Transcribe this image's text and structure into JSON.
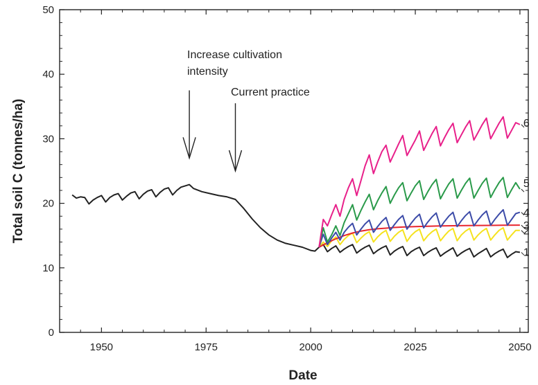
{
  "chart_data": {
    "type": "line",
    "xlabel": "Date",
    "ylabel": "Total soil C (tonnes/ha)",
    "xlim": [
      1940,
      2052
    ],
    "ylim": [
      0,
      50
    ],
    "xticks": [
      1950,
      1975,
      2000,
      2025,
      2050
    ],
    "yticks": [
      0,
      10,
      20,
      30,
      40,
      50
    ],
    "grid": false,
    "annotations": [
      {
        "lines": [
          "Increase cultivation",
          "intensity"
        ],
        "arrow_x": 1971,
        "arrow_from_y": 37.5,
        "arrow_to_y": 27
      },
      {
        "lines": [
          "Current practice"
        ],
        "arrow_x": 1982,
        "arrow_from_y": 35.5,
        "arrow_to_y": 25
      }
    ],
    "series": [
      {
        "label": "",
        "color": "#222222",
        "x": [
          1943,
          1944,
          1945,
          1946,
          1947,
          1948,
          1949,
          1950,
          1951,
          1952,
          1953,
          1954,
          1955,
          1956,
          1957,
          1958,
          1959,
          1960,
          1961,
          1962,
          1963,
          1964,
          1965,
          1966,
          1967,
          1968,
          1969,
          1970,
          1971,
          1972,
          1974,
          1976,
          1978,
          1980,
          1982,
          1984,
          1986,
          1988,
          1990,
          1992,
          1994,
          1996,
          1998,
          2000,
          2001,
          2002
        ],
        "y": [
          21.3,
          20.8,
          21.0,
          20.9,
          19.9,
          20.5,
          20.9,
          21.2,
          20.2,
          20.9,
          21.3,
          21.5,
          20.5,
          21.1,
          21.6,
          21.8,
          20.7,
          21.4,
          21.9,
          22.1,
          21.0,
          21.7,
          22.2,
          22.4,
          21.3,
          22.0,
          22.5,
          22.7,
          22.9,
          22.3,
          21.8,
          21.5,
          21.2,
          21.0,
          20.6,
          19.2,
          17.6,
          16.2,
          15.1,
          14.3,
          13.8,
          13.5,
          13.2,
          12.7,
          12.6,
          13.2
        ]
      },
      {
        "label": "1",
        "color": "#222222",
        "x": [
          2002,
          2003,
          2004,
          2005,
          2006,
          2007,
          2008,
          2009,
          2010,
          2011,
          2012,
          2013,
          2014,
          2015,
          2016,
          2017,
          2018,
          2019,
          2020,
          2021,
          2022,
          2023,
          2024,
          2025,
          2026,
          2027,
          2028,
          2029,
          2030,
          2031,
          2032,
          2033,
          2034,
          2035,
          2036,
          2037,
          2038,
          2039,
          2040,
          2041,
          2042,
          2043,
          2044,
          2045,
          2046,
          2047,
          2048,
          2049,
          2050
        ],
        "y": [
          13.2,
          13.6,
          12.5,
          13.0,
          13.4,
          12.4,
          12.9,
          13.3,
          13.6,
          12.3,
          12.8,
          13.2,
          13.5,
          12.2,
          12.7,
          13.1,
          13.4,
          12.0,
          12.6,
          13.0,
          13.3,
          11.9,
          12.5,
          12.9,
          13.2,
          11.9,
          12.4,
          12.8,
          13.1,
          11.8,
          12.3,
          12.7,
          13.1,
          11.8,
          12.3,
          12.7,
          13.0,
          11.7,
          12.2,
          12.6,
          13.0,
          11.7,
          12.2,
          12.6,
          12.9,
          11.6,
          12.1,
          12.5,
          12.4
        ]
      },
      {
        "label": "2",
        "color": "#f5e21e",
        "x": [
          2002,
          2003,
          2004,
          2005,
          2006,
          2007,
          2008,
          2009,
          2010,
          2011,
          2012,
          2013,
          2014,
          2015,
          2016,
          2017,
          2018,
          2019,
          2020,
          2021,
          2022,
          2023,
          2024,
          2025,
          2026,
          2027,
          2028,
          2029,
          2030,
          2031,
          2032,
          2033,
          2034,
          2035,
          2036,
          2037,
          2038,
          2039,
          2040,
          2041,
          2042,
          2043,
          2044,
          2045,
          2046,
          2047,
          2048,
          2049,
          2050
        ],
        "y": [
          13.2,
          14.0,
          13.3,
          14.2,
          14.8,
          13.6,
          14.4,
          15.0,
          15.4,
          13.9,
          14.6,
          15.2,
          15.6,
          14.0,
          14.8,
          15.4,
          15.8,
          14.1,
          14.9,
          15.5,
          15.9,
          14.1,
          15.0,
          15.6,
          16.0,
          14.2,
          15.0,
          15.6,
          16.0,
          14.2,
          15.0,
          15.7,
          16.1,
          14.2,
          15.1,
          15.7,
          16.1,
          14.3,
          15.1,
          15.7,
          16.1,
          14.3,
          15.1,
          15.8,
          16.2,
          14.3,
          15.1,
          15.8,
          15.8
        ]
      },
      {
        "label": "3",
        "color": "#e8262e",
        "x": [
          2002,
          2004,
          2006,
          2008,
          2010,
          2012,
          2014,
          2016,
          2018,
          2020,
          2022,
          2025,
          2028,
          2031,
          2034,
          2037,
          2040,
          2043,
          2046,
          2050
        ],
        "y": [
          13.2,
          13.9,
          14.5,
          15.0,
          15.4,
          15.7,
          15.9,
          16.05,
          16.15,
          16.25,
          16.32,
          16.4,
          16.45,
          16.5,
          16.52,
          16.55,
          16.57,
          16.58,
          16.6,
          16.62
        ]
      },
      {
        "label": "4",
        "color": "#3c4ba8",
        "x": [
          2002,
          2003,
          2004,
          2005,
          2006,
          2007,
          2008,
          2009,
          2010,
          2011,
          2012,
          2013,
          2014,
          2015,
          2016,
          2017,
          2018,
          2019,
          2020,
          2021,
          2022,
          2023,
          2024,
          2025,
          2026,
          2027,
          2028,
          2029,
          2030,
          2031,
          2032,
          2033,
          2034,
          2035,
          2036,
          2037,
          2038,
          2039,
          2040,
          2041,
          2042,
          2043,
          2044,
          2045,
          2046,
          2047,
          2048,
          2049,
          2050
        ],
        "y": [
          13.2,
          15.2,
          13.6,
          14.6,
          15.5,
          14.3,
          15.5,
          16.3,
          16.9,
          15.1,
          16.0,
          16.8,
          17.4,
          15.5,
          16.4,
          17.2,
          17.8,
          15.8,
          16.7,
          17.5,
          18.1,
          16.0,
          16.9,
          17.7,
          18.3,
          16.2,
          17.1,
          17.9,
          18.5,
          16.3,
          17.2,
          18.0,
          18.6,
          16.4,
          17.3,
          18.1,
          18.7,
          16.5,
          17.4,
          18.2,
          18.8,
          16.6,
          17.5,
          18.3,
          19.0,
          16.6,
          17.5,
          18.4,
          18.6
        ]
      },
      {
        "label": "5",
        "color": "#2a9a4a",
        "x": [
          2002,
          2003,
          2004,
          2005,
          2006,
          2007,
          2008,
          2009,
          2010,
          2011,
          2012,
          2013,
          2014,
          2015,
          2016,
          2017,
          2018,
          2019,
          2020,
          2021,
          2022,
          2023,
          2024,
          2025,
          2026,
          2027,
          2028,
          2029,
          2030,
          2031,
          2032,
          2033,
          2034,
          2035,
          2036,
          2037,
          2038,
          2039,
          2040,
          2041,
          2042,
          2043,
          2044,
          2045,
          2046,
          2047,
          2048,
          2049,
          2050
        ],
        "y": [
          13.2,
          16.2,
          14.0,
          15.1,
          16.5,
          15.0,
          17.0,
          18.4,
          19.8,
          17.4,
          18.9,
          20.2,
          21.4,
          19.0,
          20.4,
          21.6,
          22.6,
          20.0,
          21.3,
          22.4,
          23.2,
          20.4,
          21.6,
          22.7,
          23.5,
          20.6,
          21.8,
          22.9,
          23.7,
          20.7,
          21.9,
          23.0,
          23.8,
          20.8,
          22.0,
          23.1,
          23.9,
          20.8,
          22.0,
          23.1,
          23.9,
          20.9,
          22.1,
          23.2,
          24.0,
          20.9,
          22.1,
          23.2,
          22.2
        ]
      },
      {
        "label": "6",
        "color": "#e8208a",
        "x": [
          2002,
          2003,
          2004,
          2005,
          2006,
          2007,
          2008,
          2009,
          2010,
          2011,
          2012,
          2013,
          2014,
          2015,
          2016,
          2017,
          2018,
          2019,
          2020,
          2021,
          2022,
          2023,
          2024,
          2025,
          2026,
          2027,
          2028,
          2029,
          2030,
          2031,
          2032,
          2033,
          2034,
          2035,
          2036,
          2037,
          2038,
          2039,
          2040,
          2041,
          2042,
          2043,
          2044,
          2045,
          2046,
          2047,
          2048,
          2049,
          2050
        ],
        "y": [
          13.2,
          17.5,
          16.5,
          18.2,
          19.8,
          18.0,
          20.6,
          22.4,
          23.8,
          21.2,
          23.5,
          25.8,
          27.5,
          24.6,
          26.4,
          28.0,
          29.0,
          26.4,
          27.8,
          29.2,
          30.5,
          27.4,
          28.6,
          29.8,
          31.2,
          28.2,
          29.5,
          30.8,
          31.9,
          28.9,
          30.2,
          31.4,
          32.4,
          29.4,
          30.6,
          31.8,
          32.8,
          29.8,
          31.0,
          32.2,
          33.2,
          30.0,
          31.2,
          32.4,
          33.4,
          30.1,
          31.3,
          32.5,
          32.2
        ]
      }
    ]
  }
}
